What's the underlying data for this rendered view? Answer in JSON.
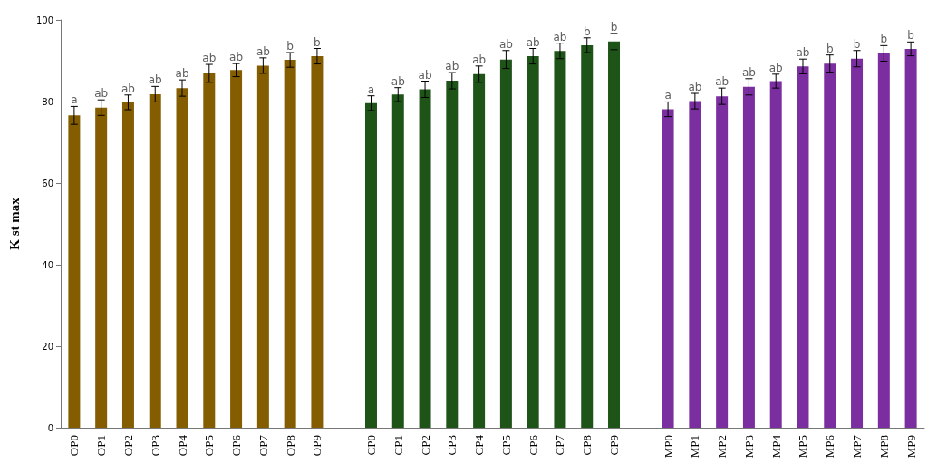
{
  "chart_data": {
    "type": "bar",
    "ylabel": "K st max",
    "categories": [
      "OP0",
      "OP1",
      "OP2",
      "OP3",
      "OP4",
      "OP5",
      "OP6",
      "OP7",
      "OP8",
      "OP9",
      null,
      "CP0",
      "CP1",
      "CP2",
      "CP3",
      "CP4",
      "CP5",
      "CP6",
      "CP7",
      "CP8",
      "CP9",
      null,
      "MP0",
      "MP1",
      "MP2",
      "MP3",
      "MP4",
      "MP5",
      "MP6",
      "MP7",
      "MP8",
      "MP9"
    ],
    "values": [
      76.6,
      78.5,
      79.8,
      81.8,
      83.3,
      86.9,
      87.7,
      88.8,
      90.2,
      91.1,
      null,
      79.6,
      81.7,
      83.0,
      85.1,
      86.7,
      90.3,
      91.1,
      92.4,
      93.8,
      94.7,
      null,
      78.1,
      80.1,
      81.3,
      83.6,
      85.0,
      88.6,
      89.3,
      90.5,
      91.8,
      92.9
    ],
    "errors": [
      2.2,
      1.9,
      1.8,
      1.9,
      2.0,
      2.2,
      1.6,
      1.9,
      1.8,
      1.9,
      null,
      1.8,
      1.7,
      2.0,
      2.0,
      2.0,
      2.2,
      1.9,
      1.9,
      1.8,
      2.0,
      null,
      1.8,
      1.9,
      2.0,
      2.0,
      1.7,
      1.8,
      2.1,
      2.0,
      1.9,
      1.7
    ],
    "colors": [
      "#845d00",
      "#845d00",
      "#845d00",
      "#845d00",
      "#845d00",
      "#845d00",
      "#845d00",
      "#845d00",
      "#845d00",
      "#845d00",
      null,
      "#1f5419",
      "#1f5419",
      "#1f5419",
      "#1f5419",
      "#1f5419",
      "#1f5419",
      "#1f5419",
      "#1f5419",
      "#1f5419",
      "#1f5419",
      null,
      "#7b2ea0",
      "#7b2ea0",
      "#7b2ea0",
      "#7b2ea0",
      "#7b2ea0",
      "#7b2ea0",
      "#7b2ea0",
      "#7b2ea0",
      "#7b2ea0",
      "#7b2ea0"
    ],
    "annotations": [
      {
        "text": "a",
        "x": "OP0",
        "y": 78.8
      },
      {
        "text": "ab",
        "x": "OP1",
        "y": 80.4
      },
      {
        "text": "ab",
        "x": "OP2",
        "y": 81.6
      },
      {
        "text": "ab",
        "x": "OP3",
        "y": 83.7
      },
      {
        "text": "ab",
        "x": "OP4",
        "y": 85.3
      },
      {
        "text": "ab",
        "x": "OP5",
        "y": 89.1
      },
      {
        "text": "ab",
        "x": "OP6",
        "y": 89.3
      },
      {
        "text": "ab",
        "x": "OP7",
        "y": 90.7
      },
      {
        "text": "b",
        "x": "OP8",
        "y": 92.0
      },
      {
        "text": "b",
        "x": "OP9",
        "y": 93.0
      },
      {
        "text": "a",
        "x": "CP0",
        "y": 81.4
      },
      {
        "text": "ab",
        "x": "CP1",
        "y": 83.4
      },
      {
        "text": "ab",
        "x": "CP2",
        "y": 85.0
      },
      {
        "text": "ab",
        "x": "CP3",
        "y": 87.1
      },
      {
        "text": "ab",
        "x": "CP4",
        "y": 88.7
      },
      {
        "text": "ab",
        "x": "CP5",
        "y": 92.5
      },
      {
        "text": "ab",
        "x": "CP6",
        "y": 93.0
      },
      {
        "text": "ab",
        "x": "CP7",
        "y": 94.3
      },
      {
        "text": "b",
        "x": "CP8",
        "y": 95.6
      },
      {
        "text": "b",
        "x": "CP9",
        "y": 96.7
      },
      {
        "text": "a",
        "x": "MP0",
        "y": 79.9
      },
      {
        "text": "ab",
        "x": "MP1",
        "y": 82.0
      },
      {
        "text": "ab",
        "x": "MP2",
        "y": 83.3
      },
      {
        "text": "ab",
        "x": "MP3",
        "y": 85.6
      },
      {
        "text": "ab",
        "x": "MP4",
        "y": 86.7
      },
      {
        "text": "ab",
        "x": "MP5",
        "y": 90.4
      },
      {
        "text": "b",
        "x": "MP6",
        "y": 91.4
      },
      {
        "text": "b",
        "x": "MP7",
        "y": 92.5
      },
      {
        "text": "b",
        "x": "MP8",
        "y": 93.7
      },
      {
        "text": "b",
        "x": "MP9",
        "y": 94.6
      }
    ],
    "ylim": [
      0,
      100
    ],
    "yticks": [
      0,
      20,
      40,
      60,
      80,
      100
    ],
    "grid": false
  }
}
